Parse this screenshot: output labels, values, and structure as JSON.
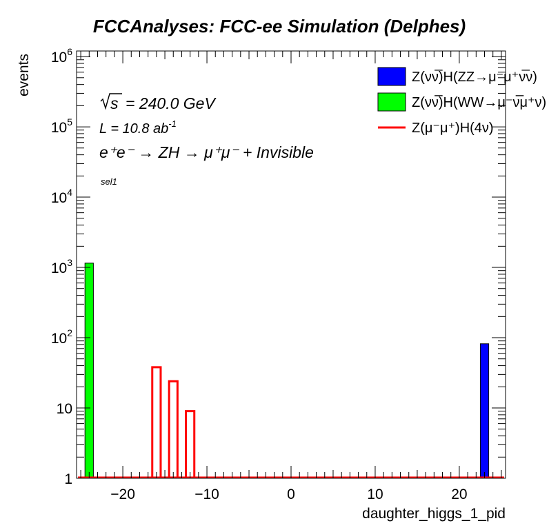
{
  "chart_data": {
    "type": "bar",
    "title": "FCCAnalyses: FCC-ee Simulation (Delphes)",
    "xlabel": "daughter_higgs_1_pid",
    "ylabel": "events",
    "xlim": [
      -25.5,
      25.5
    ],
    "ylim": [
      1,
      1200000
    ],
    "yscale": "log",
    "x_ticks": [
      -20,
      -10,
      0,
      10,
      20
    ],
    "x_tick_labels": [
      "−20",
      "−10",
      "0",
      "10",
      "20"
    ],
    "y_ticks": [
      1,
      10,
      100,
      1000,
      10000,
      100000,
      1000000
    ],
    "y_tick_labels": [
      {
        "base": "1",
        "exp": ""
      },
      {
        "base": "10",
        "exp": ""
      },
      {
        "base": "10",
        "exp": "2"
      },
      {
        "base": "10",
        "exp": "3"
      },
      {
        "base": "10",
        "exp": "4"
      },
      {
        "base": "10",
        "exp": "5"
      },
      {
        "base": "10",
        "exp": "6"
      }
    ],
    "annotations": {
      "sqrt_s_label": "s",
      "sqrt_s_value": "= 240.0 GeV",
      "lumi_text": "L = 10.8 ab",
      "lumi_exp": "-1",
      "process": "e⁺e⁻ → ZH → μ⁺μ⁻ + Invisible",
      "selection": "sel1"
    },
    "legend_position": "top-right",
    "series": [
      {
        "name": "Z(νν̅)H(ZZ→μ⁻μ⁺ν̅ν)",
        "style": "filled",
        "color": "#0000ff",
        "bins": [
          {
            "low": -1,
            "high": 0,
            "value": 0
          }
        ],
        "points": [
          {
            "x": 23,
            "value": 82
          }
        ]
      },
      {
        "name": "Z(νν̅)H(WW→μ⁻ν̅μ⁺ν)",
        "style": "filled",
        "color": "#00ff00",
        "points": [
          {
            "x": -24,
            "value": 1150
          }
        ]
      },
      {
        "name": "Z(μ⁻μ⁺)H(4ν)",
        "style": "line",
        "color": "#ff0000",
        "points": [
          {
            "x": -16,
            "value": 38
          },
          {
            "x": -14,
            "value": 24
          },
          {
            "x": -12,
            "value": 9
          }
        ]
      }
    ]
  }
}
